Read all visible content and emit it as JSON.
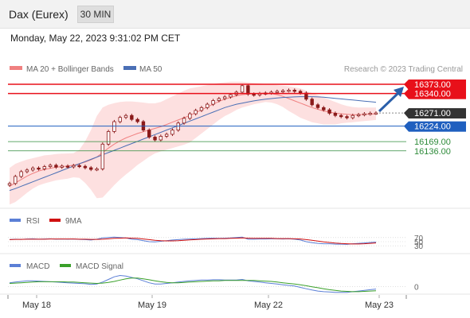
{
  "header": {
    "instrument": "Dax (Eurex)",
    "interval": "30 MIN",
    "datetime": "Monday, May 22, 2023 9:31:02 PM CET"
  },
  "legend": {
    "ma20_label": "MA 20 + Bollinger Bands",
    "ma50_label": "MA 50",
    "credit": "Research © 2023 Trading Central",
    "rsi_label": "RSI",
    "rsi_ma_label": "9MA",
    "macd_label": "MACD",
    "macd_signal_label": "MACD Signal"
  },
  "colors": {
    "resistance": "#e8101a",
    "support_blue": "#1f5fbf",
    "support_green": "#2e8b3a",
    "bollinger_fill": "#fde0e0",
    "ma20": "#f08080",
    "ma50": "#4a6fb5",
    "candle": "#8b1a1a",
    "rsi": "#5b7fd6",
    "rsi_ma": "#d01010",
    "macd": "#5b7fd6",
    "macd_signal": "#3aa02a",
    "arrow": "#2a5faa"
  },
  "chart_data": {
    "type": "candlestick",
    "y_range": [
      15960,
      16390
    ],
    "levels": [
      {
        "value": 16373.0,
        "label": "16373.00",
        "kind": "resistance"
      },
      {
        "value": 16340.0,
        "label": "16340.00",
        "kind": "resistance"
      },
      {
        "value": 16271.0,
        "label": "16271.00",
        "kind": "last"
      },
      {
        "value": 16224.0,
        "label": "16224.00",
        "kind": "pivot"
      },
      {
        "value": 16169.0,
        "label": "16169.00",
        "kind": "support"
      },
      {
        "value": 16136.0,
        "label": "16136.00",
        "kind": "support"
      }
    ],
    "x_labels": [
      "May 18",
      "May 19",
      "May 22",
      "May 23"
    ],
    "close": [
      16020,
      16045,
      16062,
      16068,
      16075,
      16072,
      16080,
      16085,
      16078,
      16082,
      16079,
      16084,
      16081,
      16076,
      16070,
      16072,
      16160,
      16205,
      16240,
      16255,
      16262,
      16248,
      16240,
      16210,
      16185,
      16175,
      16188,
      16195,
      16210,
      16235,
      16252,
      16268,
      16280,
      16290,
      16302,
      16315,
      16322,
      16328,
      16336,
      16345,
      16368,
      16338,
      16335,
      16340,
      16342,
      16345,
      16348,
      16350,
      16352,
      16348,
      16342,
      16320,
      16300,
      16290,
      16282,
      16270,
      16262,
      16258,
      16254,
      16262,
      16265,
      16268,
      16270,
      16271
    ],
    "ma20": [
      16010,
      16022,
      16034,
      16046,
      16056,
      16064,
      16070,
      16074,
      16078,
      16080,
      16082,
      16085,
      16090,
      16096,
      16104,
      16114,
      16130,
      16146,
      16160,
      16172,
      16182,
      16190,
      16198,
      16204,
      16210,
      16216,
      16222,
      16230,
      16238,
      16246,
      16254,
      16262,
      16272,
      16282,
      16292,
      16302,
      16312,
      16320,
      16326,
      16332,
      16336,
      16338,
      16340,
      16341,
      16342,
      16340,
      16336,
      16330,
      16322,
      16314,
      16306,
      16298,
      16290,
      16284,
      16278,
      16274,
      16270,
      16268,
      16266,
      16265,
      16265,
      16266,
      16267,
      16268
    ],
    "ma50": [
      15995,
      16002,
      16010,
      16018,
      16026,
      16034,
      16042,
      16050,
      16058,
      16066,
      16074,
      16082,
      16090,
      16098,
      16106,
      16114,
      16122,
      16130,
      16138,
      16146,
      16154,
      16162,
      16170,
      16178,
      16186,
      16194,
      16202,
      16210,
      16218,
      16226,
      16234,
      16242,
      16250,
      16258,
      16266,
      16274,
      16282,
      16290,
      16296,
      16302,
      16306,
      16310,
      16314,
      16317,
      16320,
      16322,
      16324,
      16326,
      16327,
      16328,
      16329,
      16329,
      16329,
      16328,
      16327,
      16325,
      16323,
      16321,
      16319,
      16317,
      16315,
      16313,
      16311,
      16309
    ],
    "bb_upper": [
      16075,
      16090,
      16098,
      16105,
      16110,
      16115,
      16120,
      16122,
      16125,
      16126,
      16127,
      16128,
      16140,
      16170,
      16210,
      16260,
      16290,
      16300,
      16306,
      16310,
      16312,
      16312,
      16310,
      16308,
      16305,
      16305,
      16310,
      16320,
      16330,
      16340,
      16350,
      16358,
      16362,
      16366,
      16370,
      16374,
      16378,
      16380,
      16382,
      16382,
      16382,
      16380,
      16378,
      16376,
      16374,
      16372,
      16370,
      16368,
      16366,
      16362,
      16358,
      16350,
      16342,
      16334,
      16326,
      16318,
      16310,
      16302,
      16296,
      16292,
      16290,
      16290,
      16290,
      16290
    ],
    "bb_lower": [
      15945,
      15954,
      15970,
      15987,
      16002,
      16013,
      16020,
      16026,
      16031,
      16034,
      16037,
      16042,
      16040,
      16022,
      15998,
      15968,
      15970,
      15992,
      16014,
      16034,
      16052,
      16068,
      16086,
      16100,
      16115,
      16127,
      16134,
      16140,
      16146,
      16152,
      16158,
      16166,
      16182,
      16198,
      16214,
      16230,
      16246,
      16260,
      16270,
      16282,
      16290,
      16296,
      16302,
      16306,
      16310,
      16308,
      16302,
      16292,
      16278,
      16266,
      16254,
      16246,
      16238,
      16234,
      16230,
      16230,
      16230,
      16234,
      16236,
      16238,
      16240,
      16242,
      16244,
      16246
    ],
    "rsi_scale": {
      "min": 0,
      "max": 100,
      "ticks": [
        "70",
        "50",
        "30"
      ]
    },
    "rsi": [
      60,
      62,
      61,
      63,
      64,
      62,
      63,
      64,
      62,
      63,
      62,
      63,
      61,
      60,
      58,
      62,
      68,
      70,
      72,
      70,
      68,
      62,
      60,
      55,
      50,
      49,
      52,
      55,
      58,
      60,
      62,
      63,
      64,
      65,
      66,
      67,
      66,
      67,
      68,
      70,
      72,
      62,
      62,
      63,
      63,
      64,
      64,
      63,
      64,
      62,
      58,
      50,
      45,
      42,
      40,
      40,
      38,
      38,
      37,
      40,
      42,
      44,
      46,
      48
    ],
    "rsi_ma": [
      60,
      61,
      61,
      62,
      62,
      62,
      62,
      63,
      63,
      63,
      63,
      63,
      62,
      62,
      61,
      61,
      62,
      64,
      66,
      67,
      68,
      67,
      66,
      63,
      60,
      57,
      55,
      54,
      54,
      55,
      57,
      59,
      60,
      62,
      63,
      64,
      65,
      65,
      66,
      67,
      68,
      67,
      66,
      66,
      66,
      66,
      65,
      65,
      65,
      64,
      63,
      60,
      57,
      53,
      49,
      46,
      43,
      41,
      40,
      39,
      39,
      40,
      42,
      44
    ],
    "macd_scale": {
      "ticks": [
        "0"
      ]
    },
    "macd": [
      12,
      14,
      16,
      18,
      18,
      17,
      16,
      15,
      14,
      13,
      12,
      11,
      10,
      9,
      7,
      8,
      14,
      22,
      30,
      34,
      32,
      28,
      24,
      18,
      12,
      8,
      8,
      10,
      12,
      14,
      16,
      18,
      19,
      20,
      20,
      21,
      21,
      20,
      20,
      20,
      22,
      18,
      16,
      14,
      12,
      10,
      8,
      6,
      4,
      2,
      -2,
      -6,
      -10,
      -13,
      -15,
      -16,
      -17,
      -17,
      -17,
      -15,
      -13,
      -11,
      -9,
      -7
    ],
    "macd_signal": [
      10,
      11,
      12,
      13,
      14,
      15,
      15,
      15,
      15,
      15,
      14,
      14,
      13,
      12,
      11,
      10,
      11,
      13,
      16,
      20,
      24,
      26,
      26,
      24,
      21,
      18,
      15,
      13,
      12,
      12,
      13,
      14,
      15,
      16,
      17,
      18,
      18,
      19,
      19,
      19,
      19,
      19,
      19,
      18,
      17,
      16,
      14,
      12,
      10,
      8,
      6,
      3,
      0,
      -3,
      -6,
      -9,
      -11,
      -13,
      -14,
      -15,
      -15,
      -14,
      -13,
      -12
    ]
  }
}
